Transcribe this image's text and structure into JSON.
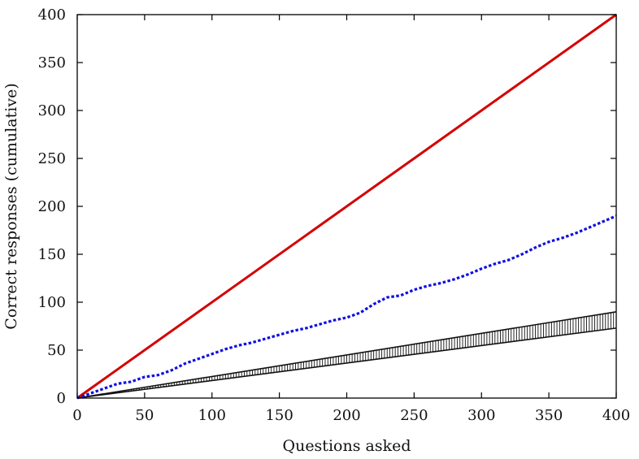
{
  "chart_data": {
    "type": "line",
    "xlabel": "Questions asked",
    "ylabel": "Correct responses (cumulative)",
    "xlim": [
      0,
      400
    ],
    "ylim": [
      0,
      400
    ],
    "xticks": [
      0,
      50,
      100,
      150,
      200,
      250,
      300,
      350,
      400
    ],
    "yticks": [
      0,
      50,
      100,
      150,
      200,
      250,
      300,
      350,
      400
    ],
    "grid": false,
    "series": [
      {
        "style": "solid",
        "color": "#d40000",
        "x": [
          0,
          400
        ],
        "y": [
          0,
          400
        ]
      },
      {
        "style": "dotted",
        "color": "#1010e0",
        "x": [
          0,
          10,
          20,
          30,
          40,
          50,
          60,
          70,
          80,
          90,
          100,
          110,
          120,
          130,
          140,
          150,
          160,
          170,
          180,
          190,
          200,
          210,
          220,
          230,
          240,
          250,
          260,
          270,
          280,
          290,
          300,
          310,
          320,
          330,
          340,
          350,
          360,
          370,
          380,
          390,
          400
        ],
        "y": [
          0,
          5,
          10,
          15,
          17,
          22,
          24,
          29,
          36,
          41,
          46,
          51,
          55,
          58,
          62,
          66,
          70,
          73,
          77,
          81,
          84,
          89,
          98,
          105,
          107,
          113,
          117,
          120,
          124,
          129,
          135,
          140,
          144,
          150,
          157,
          163,
          167,
          172,
          178,
          184,
          190
        ]
      },
      {
        "style": "band",
        "color": "#111111",
        "x": [
          0,
          400
        ],
        "y_low": [
          0,
          73
        ],
        "y_high": [
          0,
          90
        ]
      }
    ]
  }
}
